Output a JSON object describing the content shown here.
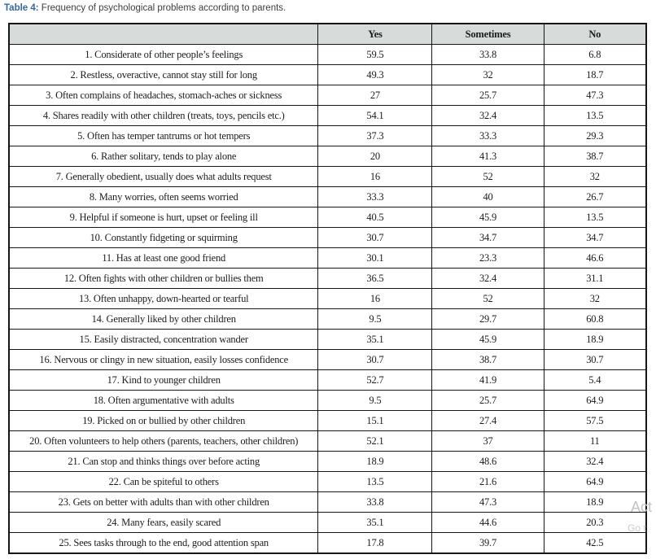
{
  "caption": {
    "label": "Table 4:",
    "text": " Frequency of psychological problems according to parents."
  },
  "table": {
    "columns": [
      "Yes",
      "Sometimes",
      "No"
    ],
    "rows": [
      {
        "item": "1. Considerate of other people’s feelings",
        "yes": "59.5",
        "sometimes": "33.8",
        "no": "6.8"
      },
      {
        "item": "2. Restless, overactive, cannot stay still for long",
        "yes": "49.3",
        "sometimes": "32",
        "no": "18.7"
      },
      {
        "item": "3. Often complains of headaches, stomach-aches or sickness",
        "yes": "27",
        "sometimes": "25.7",
        "no": "47.3"
      },
      {
        "item": "4. Shares readily with other children (treats, toys, pencils etc.)",
        "yes": "54.1",
        "sometimes": "32.4",
        "no": "13.5"
      },
      {
        "item": "5. Often has temper tantrums or hot tempers",
        "yes": "37.3",
        "sometimes": "33.3",
        "no": "29.3"
      },
      {
        "item": "6. Rather solitary, tends to play alone",
        "yes": "20",
        "sometimes": "41.3",
        "no": "38.7"
      },
      {
        "item": "7. Generally obedient, usually does what adults request",
        "yes": "16",
        "sometimes": "52",
        "no": "32"
      },
      {
        "item": "8. Many worries, often seems worried",
        "yes": "33.3",
        "sometimes": "40",
        "no": "26.7"
      },
      {
        "item": "9. Helpful if someone is hurt, upset or feeling ill",
        "yes": "40.5",
        "sometimes": "45.9",
        "no": "13.5"
      },
      {
        "item": "10. Constantly fidgeting or squirming",
        "yes": "30.7",
        "sometimes": "34.7",
        "no": "34.7"
      },
      {
        "item": "11. Has at least one good friend",
        "yes": "30.1",
        "sometimes": "23.3",
        "no": "46.6"
      },
      {
        "item": "12. Often fights with other children or bullies them",
        "yes": "36.5",
        "sometimes": "32.4",
        "no": "31.1"
      },
      {
        "item": "13. Often unhappy, down-hearted or tearful",
        "yes": "16",
        "sometimes": "52",
        "no": "32"
      },
      {
        "item": "14. Generally liked by other children",
        "yes": "9.5",
        "sometimes": "29.7",
        "no": "60.8"
      },
      {
        "item": "15. Easily distracted, concentration wander",
        "yes": "35.1",
        "sometimes": "45.9",
        "no": "18.9"
      },
      {
        "item": "16. Nervous or clingy in new situation, easily losses confidence",
        "yes": "30.7",
        "sometimes": "38.7",
        "no": "30.7"
      },
      {
        "item": "17. Kind to younger children",
        "yes": "52.7",
        "sometimes": "41.9",
        "no": "5.4"
      },
      {
        "item": "18. Often argumentative with adults",
        "yes": "9.5",
        "sometimes": "25.7",
        "no": "64.9"
      },
      {
        "item": "19. Picked on or bullied by other children",
        "yes": "15.1",
        "sometimes": "27.4",
        "no": "57.5"
      },
      {
        "item": "20. Often volunteers to help others (parents, teachers, other children)",
        "yes": "52.1",
        "sometimes": "37",
        "no": "11"
      },
      {
        "item": "21. Can stop and thinks things over before acting",
        "yes": "18.9",
        "sometimes": "48.6",
        "no": "32.4"
      },
      {
        "item": "22. Can be spiteful to others",
        "yes": "13.5",
        "sometimes": "21.6",
        "no": "64.9"
      },
      {
        "item": "23. Gets on better with adults than with other children",
        "yes": "33.8",
        "sometimes": "47.3",
        "no": "18.9"
      },
      {
        "item": "24. Many fears, easily scared",
        "yes": "35.1",
        "sometimes": "44.6",
        "no": "20.3"
      },
      {
        "item": "25. Sees tasks through to the end, good attention span",
        "yes": "17.8",
        "sometimes": "39.7",
        "no": "42.5"
      }
    ]
  },
  "watermark": {
    "line1": "Act",
    "line2": "Go t"
  },
  "colors": {
    "caption_accent": "#3469a2",
    "caption_text": "#3d3d3d",
    "header_bg": "#d7dbd9",
    "border": "#161616",
    "cell_text": "#1c1c1e",
    "watermark": "#c3c3c3"
  }
}
